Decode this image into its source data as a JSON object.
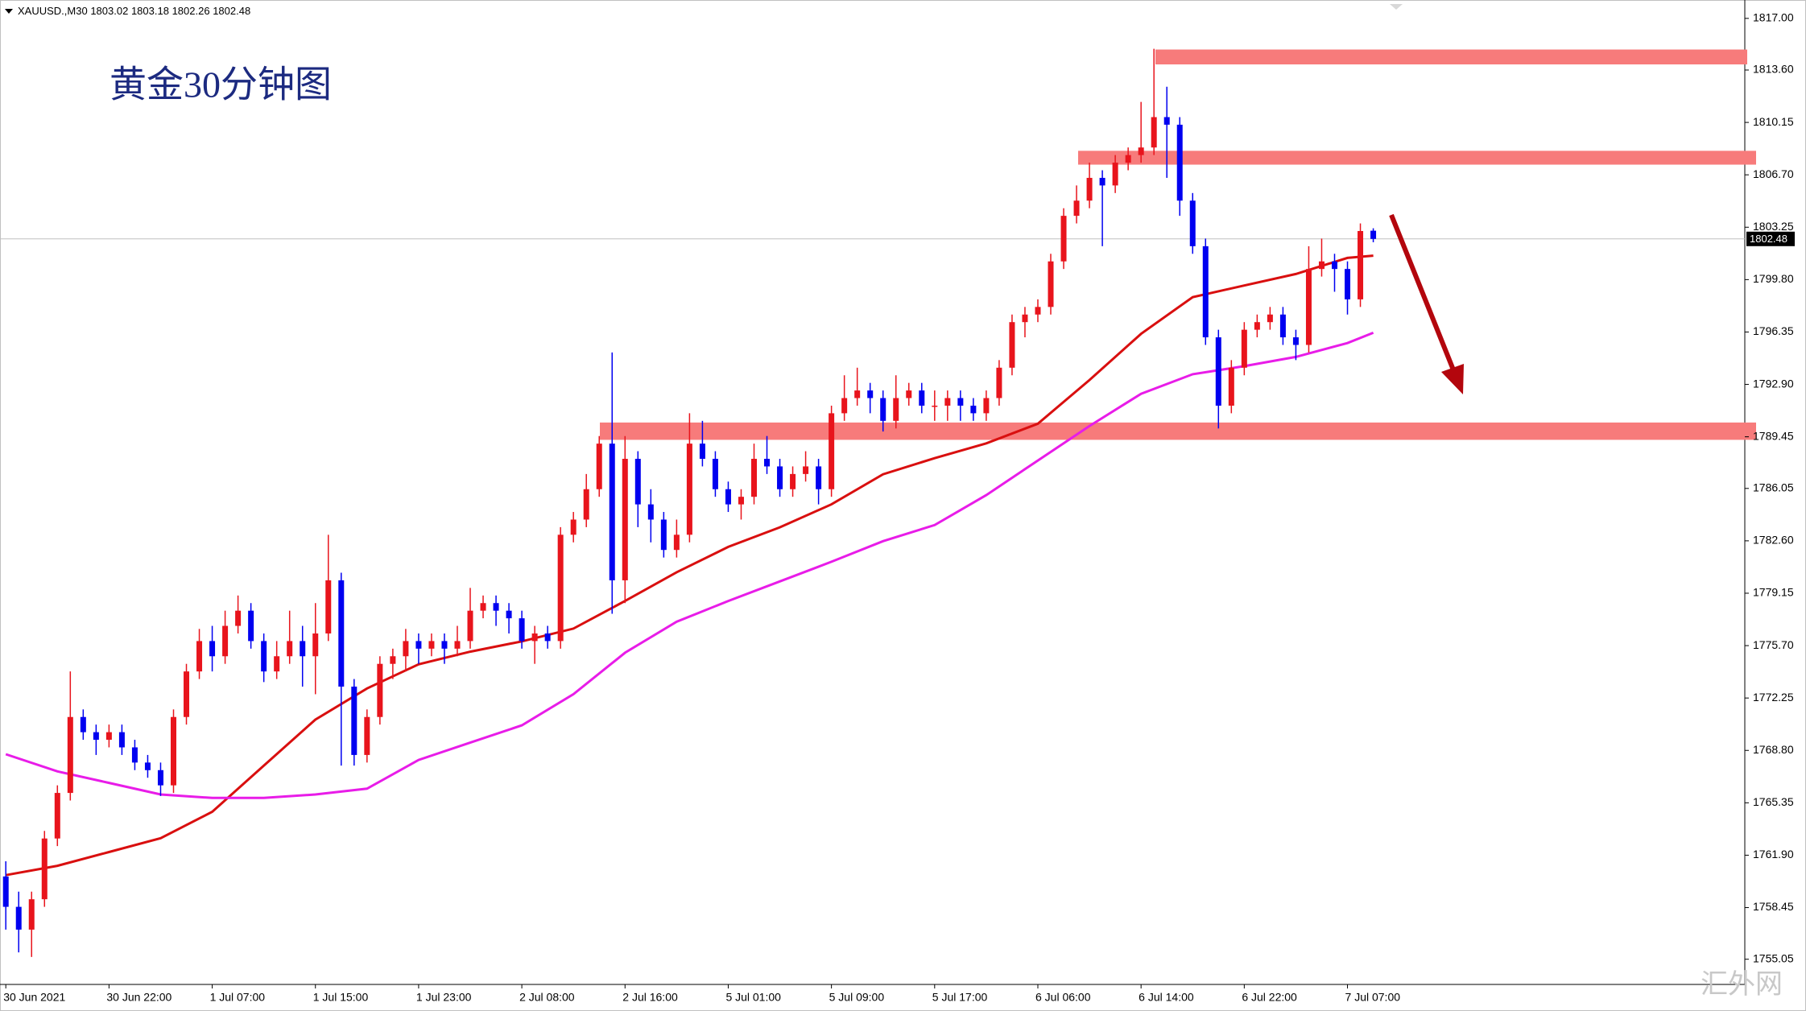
{
  "chart_data": {
    "type": "candlestick",
    "title": "黄金30分钟图",
    "symbol": "XAUUSD.,M30",
    "watermark": "汇外网",
    "up_color": "#e8141c",
    "down_color": "#0000f0",
    "xlim": [
      -0.45,
      134.8
    ],
    "ylim": [
      1753.39,
      1817.84
    ],
    "yticks": [
      {
        "value": 1817.0,
        "label": "1817.00"
      },
      {
        "value": 1813.6,
        "label": "1813.60"
      },
      {
        "value": 1810.15,
        "label": "1810.15"
      },
      {
        "value": 1806.7,
        "label": "1806.70"
      },
      {
        "value": 1803.25,
        "label": "1803.25"
      },
      {
        "value": 1799.8,
        "label": "1799.80"
      },
      {
        "value": 1796.35,
        "label": "1796.35"
      },
      {
        "value": 1792.9,
        "label": "1792.90"
      },
      {
        "value": 1789.45,
        "label": "1789.45"
      },
      {
        "value": 1786.05,
        "label": "1786.05"
      },
      {
        "value": 1782.6,
        "label": "1782.60"
      },
      {
        "value": 1779.15,
        "label": "1779.15"
      },
      {
        "value": 1775.7,
        "label": "1775.70"
      },
      {
        "value": 1772.25,
        "label": "1772.25"
      },
      {
        "value": 1768.8,
        "label": "1768.80"
      },
      {
        "value": 1765.35,
        "label": "1765.35"
      },
      {
        "value": 1761.9,
        "label": "1761.90"
      },
      {
        "value": 1758.45,
        "label": "1758.45"
      },
      {
        "value": 1755.05,
        "label": "1755.05"
      }
    ],
    "xticks": [
      {
        "value": 0,
        "label": "30 Jun 2021"
      },
      {
        "value": 8,
        "label": "30 Jun 22:00"
      },
      {
        "value": 16,
        "label": "1 Jul 07:00"
      },
      {
        "value": 24,
        "label": "1 Jul 15:00"
      },
      {
        "value": 32,
        "label": "1 Jul 23:00"
      },
      {
        "value": 40,
        "label": "2 Jul 08:00"
      },
      {
        "value": 48,
        "label": "2 Jul 16:00"
      },
      {
        "value": 56,
        "label": "5 Jul 01:00"
      },
      {
        "value": 64,
        "label": "5 Jul 09:00"
      },
      {
        "value": 72,
        "label": "5 Jul 17:00"
      },
      {
        "value": 80,
        "label": "6 Jul 06:00"
      },
      {
        "value": 88,
        "label": "6 Jul 14:00"
      },
      {
        "value": 96,
        "label": "6 Jul 22:00"
      },
      {
        "value": 104,
        "label": "7 Jul 07:00"
      }
    ],
    "zones": [
      {
        "low": 1813.97,
        "high": 1814.95,
        "color": "#f77b7b"
      },
      {
        "low": 1807.37,
        "high": 1808.28,
        "color": "#f77b7b"
      },
      {
        "low": 1789.25,
        "high": 1790.39,
        "color": "#f77b7b"
      }
    ],
    "lines": [
      {
        "color": "#d90f0f",
        "x": [
          0,
          4,
          8,
          12,
          16,
          20,
          24,
          28,
          32,
          36,
          40,
          44,
          48,
          52,
          56,
          60,
          64,
          68,
          72,
          76,
          80,
          84,
          88,
          92,
          96,
          100,
          104,
          106
        ],
        "values": [
          1760.59,
          1761.2,
          1762.11,
          1763.02,
          1764.76,
          1767.8,
          1770.83,
          1772.88,
          1774.47,
          1775.3,
          1775.98,
          1776.82,
          1778.64,
          1780.53,
          1782.2,
          1783.49,
          1785.0,
          1786.98,
          1788.04,
          1789.02,
          1790.31,
          1793.19,
          1796.23,
          1798.65,
          1799.41,
          1800.17,
          1801.23,
          1801.38
        ]
      },
      {
        "color": "#e81ce8",
        "x": [
          0,
          4,
          8,
          12,
          16,
          20,
          24,
          28,
          32,
          36,
          40,
          44,
          48,
          52,
          56,
          60,
          64,
          68,
          72,
          76,
          80,
          84,
          88,
          92,
          96,
          100,
          104,
          106
        ],
        "values": [
          1768.55,
          1767.42,
          1766.66,
          1765.9,
          1765.67,
          1765.67,
          1765.9,
          1766.28,
          1768.17,
          1769.31,
          1770.45,
          1772.5,
          1775.23,
          1777.27,
          1778.64,
          1779.93,
          1781.22,
          1782.58,
          1783.64,
          1785.61,
          1787.89,
          1790.16,
          1792.28,
          1793.57,
          1794.1,
          1794.71,
          1795.62,
          1796.3
        ]
      }
    ],
    "candles": [
      [
        1760.5,
        1761.5,
        1757,
        1758.5
      ],
      [
        1758.5,
        1759.5,
        1755.5,
        1757
      ],
      [
        1757,
        1759.5,
        1755.2,
        1759
      ],
      [
        1759,
        1763.5,
        1758.5,
        1763
      ],
      [
        1763,
        1766.5,
        1762.5,
        1766
      ],
      [
        1766,
        1774,
        1765.5,
        1771
      ],
      [
        1771,
        1771.5,
        1769.5,
        1770
      ],
      [
        1770,
        1770.5,
        1768.5,
        1769.5
      ],
      [
        1769.5,
        1770.5,
        1769,
        1770
      ],
      [
        1770,
        1770.5,
        1768.5,
        1769
      ],
      [
        1769,
        1769.5,
        1767.5,
        1768
      ],
      [
        1768,
        1768.5,
        1767,
        1767.5
      ],
      [
        1767.5,
        1768,
        1765.8,
        1766.5
      ],
      [
        1766.5,
        1771.5,
        1766,
        1771
      ],
      [
        1771,
        1774.5,
        1770.5,
        1774
      ],
      [
        1774,
        1776.8,
        1773.5,
        1776
      ],
      [
        1776,
        1777,
        1774,
        1775
      ],
      [
        1775,
        1778,
        1774.5,
        1777
      ],
      [
        1777,
        1779,
        1776.5,
        1778
      ],
      [
        1778,
        1778.5,
        1775.5,
        1776
      ],
      [
        1776,
        1776.5,
        1773.3,
        1774
      ],
      [
        1774,
        1776,
        1773.5,
        1775
      ],
      [
        1775,
        1778,
        1774.5,
        1776
      ],
      [
        1776,
        1777,
        1773,
        1775
      ],
      [
        1775,
        1778.5,
        1772.5,
        1776.5
      ],
      [
        1776.5,
        1783,
        1776,
        1780
      ],
      [
        1780,
        1780.5,
        1767.8,
        1773
      ],
      [
        1773,
        1773.5,
        1767.8,
        1768.5
      ],
      [
        1768.5,
        1771.5,
        1768,
        1771
      ],
      [
        1771,
        1775,
        1770.5,
        1774.5
      ],
      [
        1774.5,
        1775.5,
        1773.5,
        1775
      ],
      [
        1775,
        1776.8,
        1774,
        1776
      ],
      [
        1776,
        1776.5,
        1774.5,
        1775.5
      ],
      [
        1775.5,
        1776.5,
        1775,
        1776
      ],
      [
        1776,
        1776.5,
        1774.5,
        1775.5
      ],
      [
        1775.5,
        1777,
        1775,
        1776
      ],
      [
        1776,
        1779.5,
        1775.5,
        1778
      ],
      [
        1778,
        1779,
        1777.5,
        1778.5
      ],
      [
        1778.5,
        1779,
        1777,
        1778
      ],
      [
        1778,
        1778.5,
        1776.5,
        1777.5
      ],
      [
        1777.5,
        1778,
        1775.5,
        1776
      ],
      [
        1776,
        1777,
        1774.5,
        1776.5
      ],
      [
        1776.5,
        1777,
        1775.5,
        1776
      ],
      [
        1776,
        1783.5,
        1775.5,
        1783
      ],
      [
        1783,
        1784.5,
        1782.5,
        1784
      ],
      [
        1784,
        1787,
        1783.5,
        1786
      ],
      [
        1786,
        1789.5,
        1785.5,
        1789
      ],
      [
        1789,
        1795,
        1777.8,
        1780
      ],
      [
        1780,
        1789.5,
        1778.5,
        1788
      ],
      [
        1788,
        1788.5,
        1783.5,
        1785
      ],
      [
        1785,
        1786,
        1782.5,
        1784
      ],
      [
        1784,
        1784.5,
        1781.5,
        1782
      ],
      [
        1782,
        1784,
        1781.5,
        1783
      ],
      [
        1783,
        1791,
        1782.5,
        1789
      ],
      [
        1789,
        1790.5,
        1787.5,
        1788
      ],
      [
        1788,
        1788.5,
        1785.5,
        1786
      ],
      [
        1786,
        1786.5,
        1784.5,
        1785
      ],
      [
        1785,
        1786,
        1784,
        1785.5
      ],
      [
        1785.5,
        1789,
        1785,
        1788
      ],
      [
        1788,
        1789.5,
        1787,
        1787.5
      ],
      [
        1787.5,
        1788,
        1785.5,
        1786
      ],
      [
        1786,
        1787.5,
        1785.5,
        1787
      ],
      [
        1787,
        1788.5,
        1786.5,
        1787.5
      ],
      [
        1787.5,
        1788,
        1785,
        1786
      ],
      [
        1786,
        1791.5,
        1785.5,
        1791
      ],
      [
        1791,
        1793.5,
        1790.5,
        1792
      ],
      [
        1792,
        1794,
        1791.5,
        1792.5
      ],
      [
        1792.5,
        1793,
        1791,
        1792
      ],
      [
        1792,
        1792.5,
        1789.8,
        1790.5
      ],
      [
        1790.5,
        1793.5,
        1790,
        1792
      ],
      [
        1792,
        1793,
        1791.5,
        1792.5
      ],
      [
        1792.5,
        1793,
        1791,
        1791.5
      ],
      [
        1791.5,
        1792.5,
        1790.5,
        1791.5
      ],
      [
        1791.5,
        1792.5,
        1790.5,
        1792
      ],
      [
        1792,
        1792.5,
        1790.5,
        1791.5
      ],
      [
        1791.5,
        1792,
        1790.5,
        1791
      ],
      [
        1791,
        1792.5,
        1790.5,
        1792
      ],
      [
        1792,
        1794.5,
        1791.5,
        1794
      ],
      [
        1794,
        1797.5,
        1793.5,
        1797
      ],
      [
        1797,
        1798,
        1796,
        1797.5
      ],
      [
        1797.5,
        1798.5,
        1797,
        1798
      ],
      [
        1798,
        1801.5,
        1797.5,
        1801
      ],
      [
        1801,
        1804.5,
        1800.5,
        1804
      ],
      [
        1804,
        1806,
        1803.5,
        1805
      ],
      [
        1805,
        1807.5,
        1804.5,
        1806.5
      ],
      [
        1806.5,
        1807,
        1802,
        1806
      ],
      [
        1806,
        1808,
        1805.5,
        1807.5
      ],
      [
        1807.5,
        1808.5,
        1807,
        1808
      ],
      [
        1808,
        1811.5,
        1807.5,
        1808.5
      ],
      [
        1808.5,
        1815,
        1808,
        1810.5
      ],
      [
        1810.5,
        1812.5,
        1806.5,
        1810
      ],
      [
        1810,
        1810.5,
        1804,
        1805
      ],
      [
        1805,
        1805.5,
        1801.5,
        1802
      ],
      [
        1802,
        1802.5,
        1795.5,
        1796
      ],
      [
        1796,
        1796.5,
        1790,
        1791.5
      ],
      [
        1791.5,
        1794.5,
        1791,
        1794
      ],
      [
        1794,
        1797,
        1793.5,
        1796.5
      ],
      [
        1796.5,
        1797.5,
        1796,
        1797
      ],
      [
        1797,
        1798,
        1796.5,
        1797.5
      ],
      [
        1797.5,
        1798,
        1795.5,
        1796
      ],
      [
        1796,
        1796.5,
        1794.5,
        1795.5
      ],
      [
        1795.5,
        1802,
        1795,
        1800.5
      ],
      [
        1800.5,
        1802.5,
        1800,
        1801
      ],
      [
        1801,
        1801.5,
        1799,
        1800.5
      ],
      [
        1800.5,
        1801,
        1797.5,
        1798.5
      ],
      [
        1798.5,
        1803.5,
        1798,
        1803
      ],
      [
        1803.02,
        1803.18,
        1802.26,
        1802.48
      ]
    ]
  }
}
